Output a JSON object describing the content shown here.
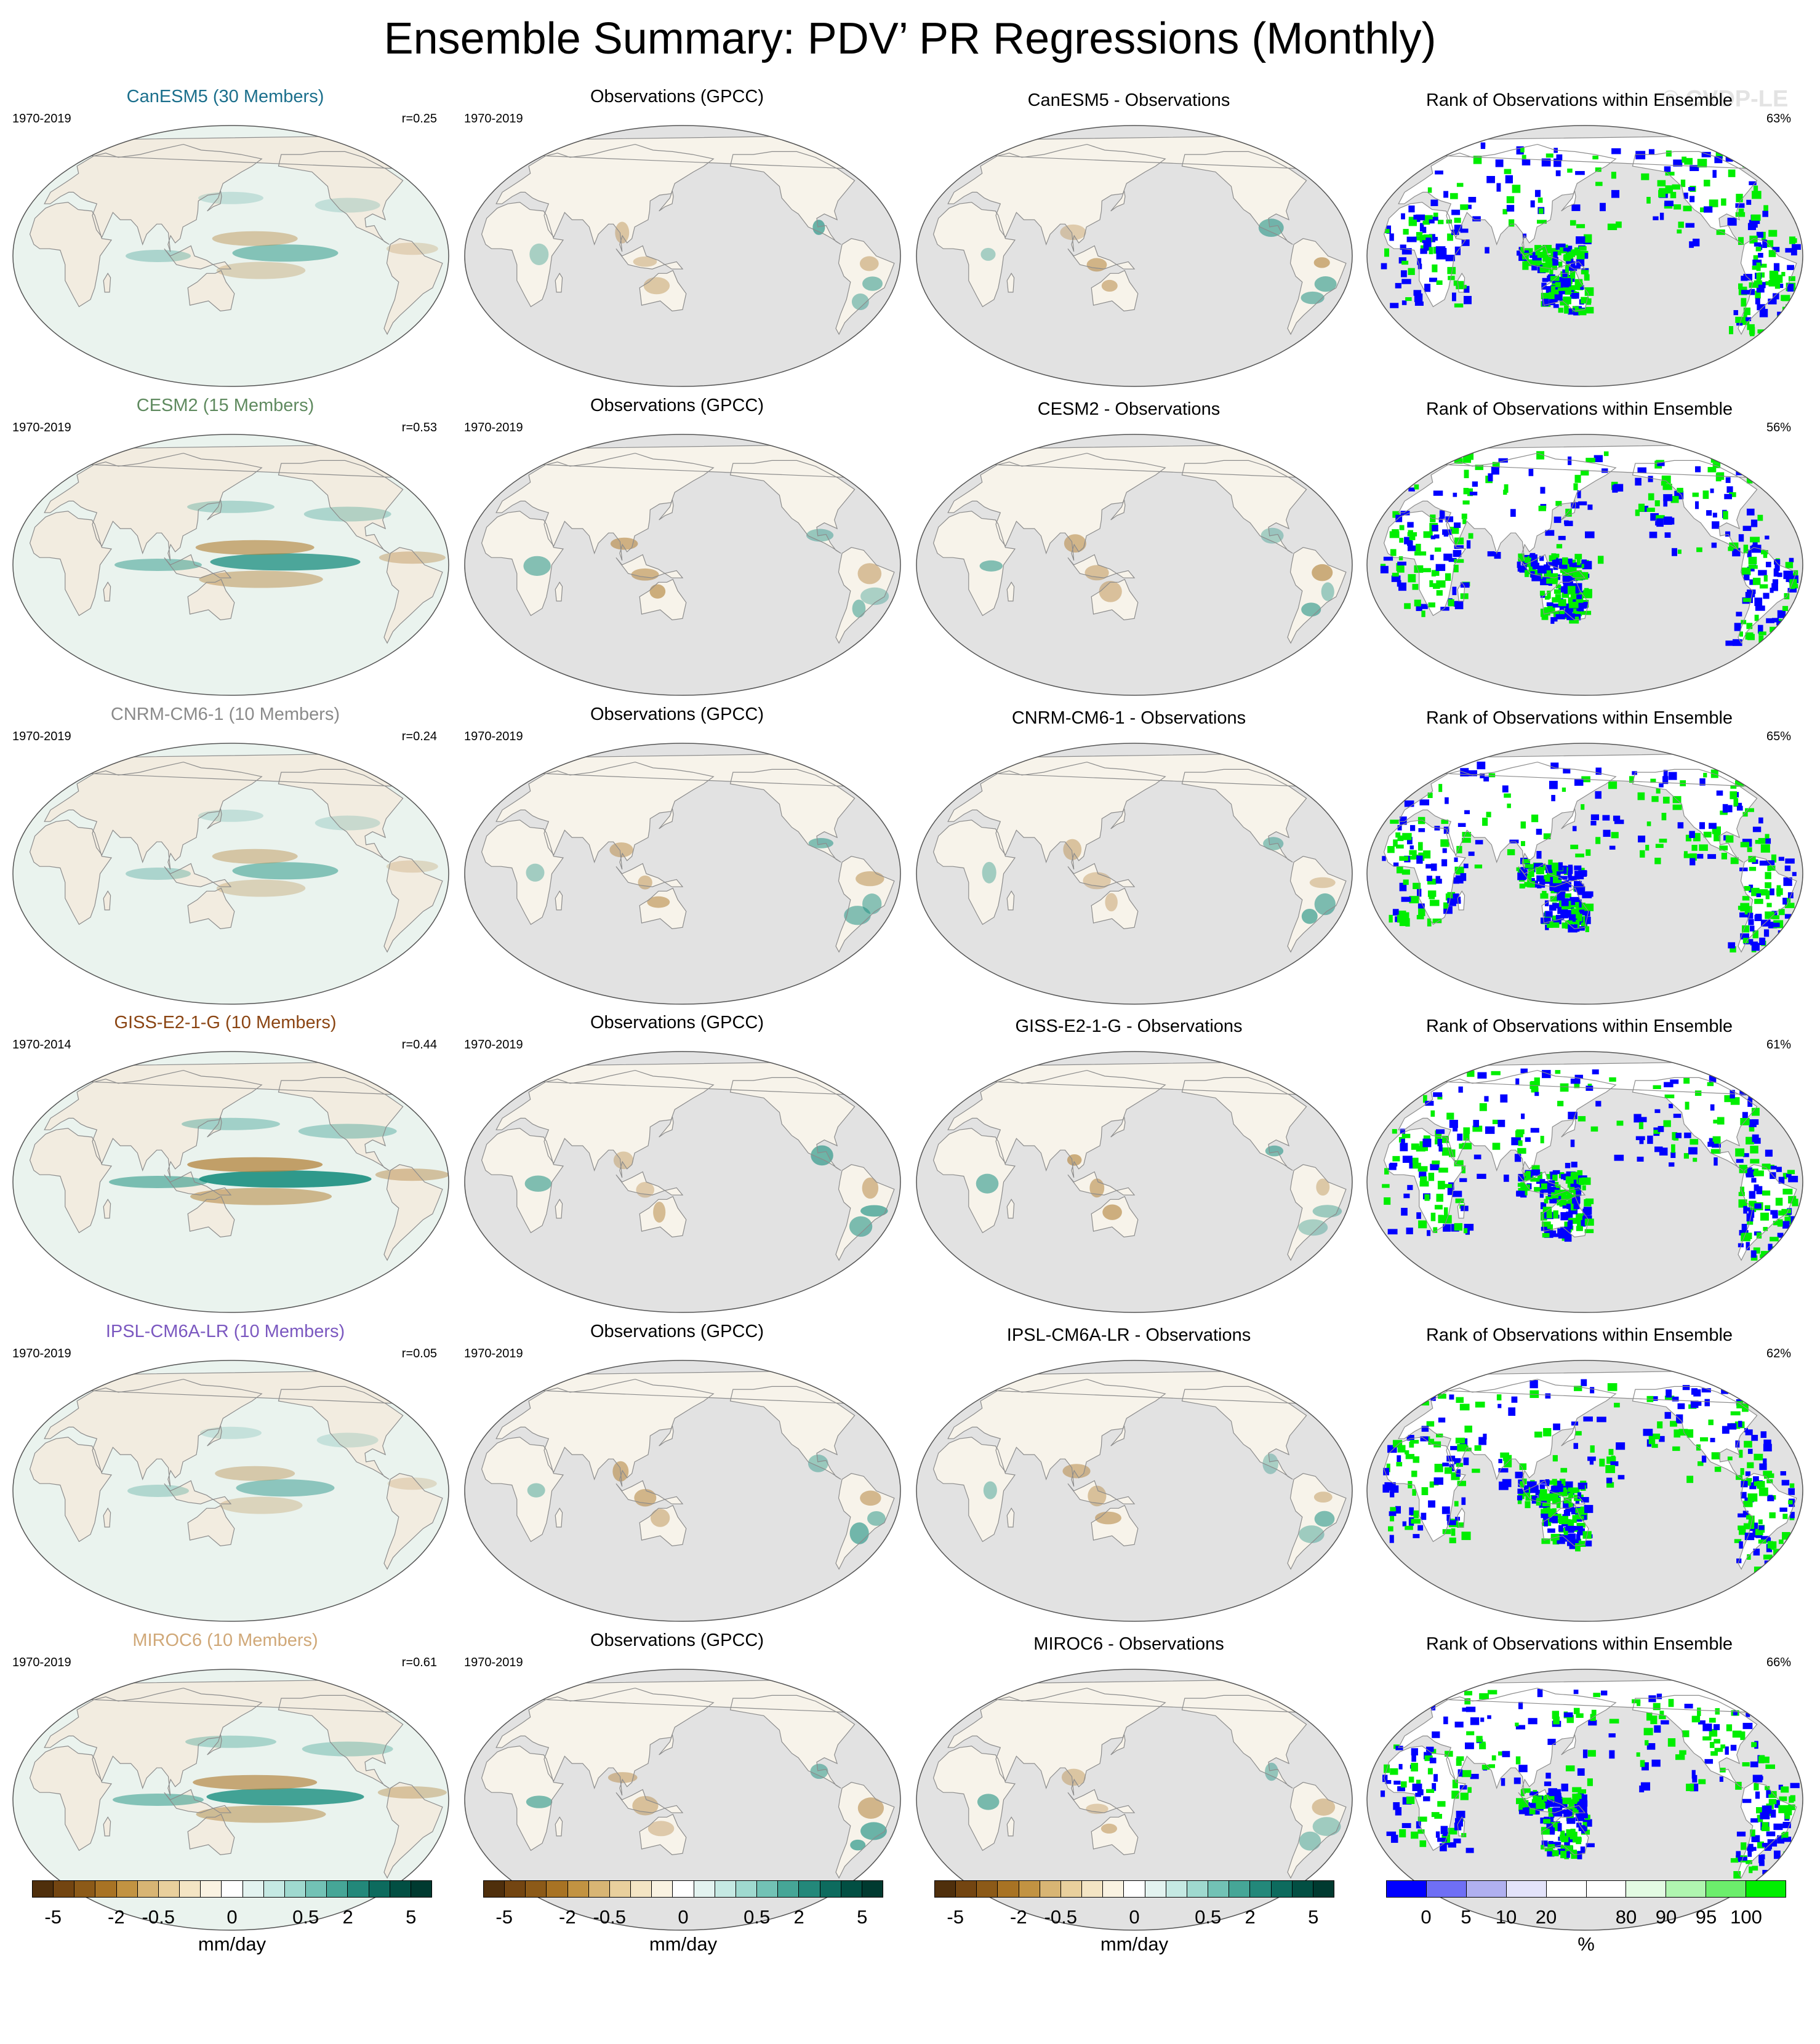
{
  "title": "Ensemble Summary: PDV’ PR Regressions (Monthly)",
  "watermark": "© CVDP-LE",
  "colors": {
    "ocean": "#eaf3ee",
    "land_gray": "#e2e2e2",
    "coast": "#8c8c8c",
    "wet": "#1b8f80",
    "dry": "#b3833b",
    "rank_low": "#0000ff",
    "rank_high": "#00ee00"
  },
  "rows": [
    {
      "model_label": "CanESM5 (30 Members)",
      "model_color": "#1b6f8c",
      "model_period": "1970-2019",
      "pattern_corr": "r=0.25",
      "obs_label": "Observations (GPCC)",
      "obs_period": "1970-2019",
      "diff_label": "CanESM5 - Observations",
      "rank_label": "Rank of Observations within Ensemble",
      "rank_pct": "63%"
    },
    {
      "model_label": "CESM2 (15 Members)",
      "model_color": "#5f8a5f",
      "model_period": "1970-2019",
      "pattern_corr": "r=0.53",
      "obs_label": "Observations (GPCC)",
      "obs_period": "1970-2019",
      "diff_label": "CESM2 - Observations",
      "rank_label": "Rank of Observations within Ensemble",
      "rank_pct": "56%"
    },
    {
      "model_label": "CNRM-CM6-1 (10 Members)",
      "model_color": "#8a8a8a",
      "model_period": "1970-2019",
      "pattern_corr": "r=0.24",
      "obs_label": "Observations (GPCC)",
      "obs_period": "1970-2019",
      "diff_label": "CNRM-CM6-1 - Observations",
      "rank_label": "Rank of Observations within Ensemble",
      "rank_pct": "65%"
    },
    {
      "model_label": "GISS-E2-1-G (10 Members)",
      "model_color": "#8b4513",
      "model_period": "1970-2014",
      "pattern_corr": "r=0.44",
      "obs_label": "Observations (GPCC)",
      "obs_period": "1970-2019",
      "diff_label": "GISS-E2-1-G - Observations",
      "rank_label": "Rank of Observations within Ensemble",
      "rank_pct": "61%"
    },
    {
      "model_label": "IPSL-CM6A-LR (10 Members)",
      "model_color": "#7b58c0",
      "model_period": "1970-2019",
      "pattern_corr": "r=0.05",
      "obs_label": "Observations (GPCC)",
      "obs_period": "1970-2019",
      "diff_label": "IPSL-CM6A-LR - Observations",
      "rank_label": "Rank of Observations within Ensemble",
      "rank_pct": "62%"
    },
    {
      "model_label": "MIROC6 (10 Members)",
      "model_color": "#d0a878",
      "model_period": "1970-2019",
      "pattern_corr": "r=0.61",
      "obs_label": "Observations (GPCC)",
      "obs_period": "1970-2019",
      "diff_label": "MIROC6 - Observations",
      "rank_label": "Rank of Observations within Ensemble",
      "rank_pct": "66%"
    }
  ],
  "chart_data": {
    "type": "heatmap",
    "projection": "global map",
    "layout": "6 rows x 4 columns of map panels",
    "columns": [
      "model ensemble mean",
      "observations",
      "model minus observations",
      "rank of observations within ensemble"
    ],
    "colorbars": [
      {
        "ticks": [
          "-5",
          "-2",
          "-0.5",
          "0",
          "0.5",
          "2",
          "5"
        ],
        "units": "mm/day",
        "colors": [
          "#4f2f0c",
          "#734511",
          "#8c5a18",
          "#a87324",
          "#c29342",
          "#d8b574",
          "#e9d09d",
          "#f4e5c4",
          "#faf3e2",
          "#ffffff",
          "#e3f3f0",
          "#c5e9e3",
          "#9fd9cf",
          "#72c2b5",
          "#46a697",
          "#23887a",
          "#0d6b5e",
          "#024f43",
          "#003a30"
        ]
      },
      {
        "ticks": [
          "0",
          "5",
          "10",
          "20",
          "80",
          "90",
          "95",
          "100"
        ],
        "units": "%",
        "colors": [
          "#0000ff",
          "#6f6ff5",
          "#b0b0f0",
          "#e3e3fa",
          "#ffffff",
          "#ffffff",
          "#e3fbe3",
          "#b0f5b0",
          "#6cee6c",
          "#00ee00"
        ]
      }
    ]
  }
}
